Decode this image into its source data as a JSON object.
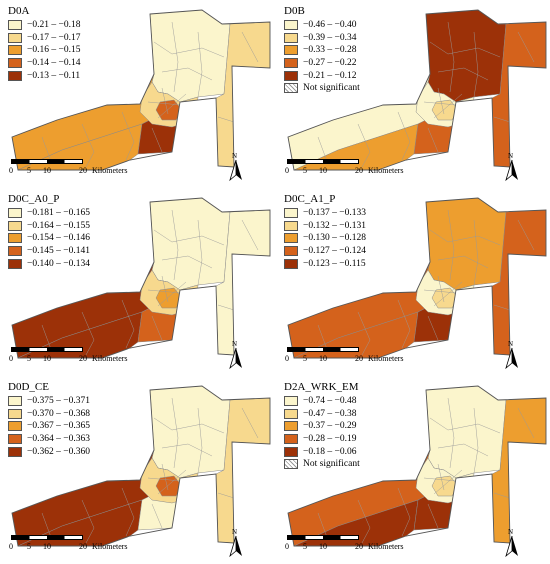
{
  "scale": {
    "ticks": [
      "0",
      "5",
      "10",
      "20"
    ],
    "unit": "Kilometers"
  },
  "north_label": "N",
  "panels": [
    {
      "title": "D0A",
      "legend": [
        {
          "label": "−0.21 – −0.18",
          "color": "#fbf5cc"
        },
        {
          "label": "−0.17 – −0.17",
          "color": "#f7d98e"
        },
        {
          "label": "−0.16 – −0.15",
          "color": "#ed9e2f"
        },
        {
          "label": "−0.14 – −0.14",
          "color": "#d4621c"
        },
        {
          "label": "−0.13 – −0.11",
          "color": "#9c3108"
        }
      ],
      "fills": {
        "north": 0,
        "east": 1,
        "core": 1,
        "sw": 2,
        "southfar": 2,
        "se": 4,
        "center": 3
      }
    },
    {
      "title": "D0B",
      "legend": [
        {
          "label": "−0.46 – −0.40",
          "color": "#fbf5cc"
        },
        {
          "label": "−0.39 – −0.34",
          "color": "#f7d98e"
        },
        {
          "label": "−0.33 – −0.28",
          "color": "#ed9e2f"
        },
        {
          "label": "−0.27 – −0.22",
          "color": "#d4621c"
        },
        {
          "label": "−0.21 – −0.12",
          "color": "#9c3108"
        },
        {
          "label": "Not significant",
          "color": "hatch"
        }
      ],
      "fills": {
        "north": 4,
        "east": 3,
        "core": 0,
        "sw": 0,
        "southfar": 2,
        "se": 3,
        "center": 1
      }
    },
    {
      "title": "D0C_A0_P",
      "legend": [
        {
          "label": "−0.181 – −0.165",
          "color": "#fbf5cc"
        },
        {
          "label": "−0.164 – −0.155",
          "color": "#f7d98e"
        },
        {
          "label": "−0.154 – −0.146",
          "color": "#ed9e2f"
        },
        {
          "label": "−0.145 – −0.141",
          "color": "#d4621c"
        },
        {
          "label": "−0.140 – −0.134",
          "color": "#9c3108"
        }
      ],
      "fills": {
        "north": 0,
        "east": 0,
        "core": 1,
        "sw": 4,
        "southfar": 4,
        "se": 3,
        "center": 2
      }
    },
    {
      "title": "D0C_A1_P",
      "legend": [
        {
          "label": "−0.137 – −0.133",
          "color": "#fbf5cc"
        },
        {
          "label": "−0.132 – −0.131",
          "color": "#f7d98e"
        },
        {
          "label": "−0.130 – −0.128",
          "color": "#ed9e2f"
        },
        {
          "label": "−0.127 – −0.124",
          "color": "#d4621c"
        },
        {
          "label": "−0.123 – −0.115",
          "color": "#9c3108"
        }
      ],
      "fills": {
        "north": 2,
        "east": 3,
        "core": 0,
        "sw": 3,
        "southfar": 3,
        "se": 4,
        "center": 1
      }
    },
    {
      "title": "D0D_CE",
      "legend": [
        {
          "label": "−0.375 – −0.371",
          "color": "#fbf5cc"
        },
        {
          "label": "−0.370 – −0.368",
          "color": "#f7d98e"
        },
        {
          "label": "−0.367 – −0.365",
          "color": "#ed9e2f"
        },
        {
          "label": "−0.364 – −0.363",
          "color": "#d4621c"
        },
        {
          "label": "−0.362 – −0.360",
          "color": "#9c3108"
        }
      ],
      "fills": {
        "north": 0,
        "east": 1,
        "core": 1,
        "sw": 4,
        "southfar": 4,
        "se": 0,
        "center": 3
      }
    },
    {
      "title": "D2A_WRK_EM",
      "legend": [
        {
          "label": "−0.74 – −0.48",
          "color": "#fbf5cc"
        },
        {
          "label": "−0.47 – −0.38",
          "color": "#f7d98e"
        },
        {
          "label": "−0.37 – −0.29",
          "color": "#ed9e2f"
        },
        {
          "label": "−0.28 – −0.19",
          "color": "#d4621c"
        },
        {
          "label": "−0.18 – −0.06",
          "color": "#9c3108"
        },
        {
          "label": "Not significant",
          "color": "hatch"
        }
      ],
      "fills": {
        "north": 0,
        "east": 2,
        "core": 0,
        "sw": 3,
        "southfar": 4,
        "se": 4,
        "center": 1
      }
    }
  ]
}
